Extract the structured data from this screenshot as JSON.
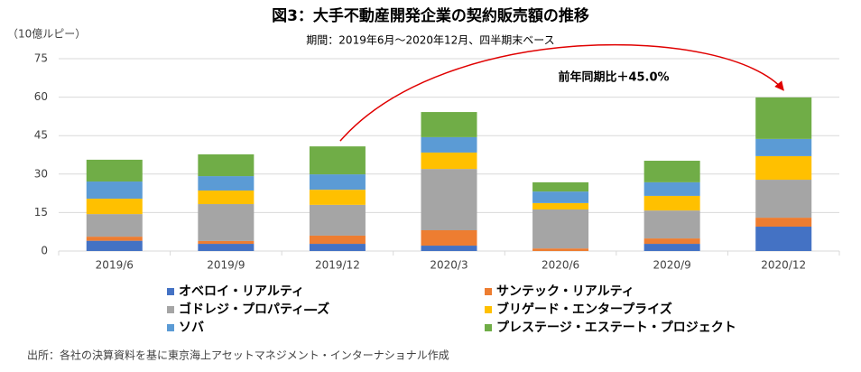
{
  "chart_data": {
    "type": "stacked_bar",
    "title": "図3：大手不動産開発企業の契約販売額の推移",
    "subtitle": "期間：2019年6月〜2020年12月、四半期末ベース",
    "y_axis_label": "（10億ルピー）",
    "annotation": "前年同期比＋45.0%",
    "source": "出所：各社の決算資料を基に東京海上アセットマネジメント・インターナショナル作成",
    "categories": [
      "2019/6",
      "2019/9",
      "2019/12",
      "2020/3",
      "2020/6",
      "2020/9",
      "2020/12"
    ],
    "series": [
      {
        "name": "オベロイ・リアルティ",
        "color": "#4472c4",
        "values": [
          4,
          2.8,
          2.8,
          2.1,
          0,
          2.8,
          9.5
        ]
      },
      {
        "name": "サンテック・リアルティ",
        "color": "#ed7d31",
        "values": [
          1.6,
          1.1,
          3.2,
          6,
          1,
          2.1,
          3.5
        ]
      },
      {
        "name": "ゴドレジ・プロパティ―ズ",
        "color": "#a5a5a5",
        "values": [
          8.8,
          14.4,
          12,
          23.9,
          15.2,
          10.9,
          14.8
        ]
      },
      {
        "name": "ブリゲード・エンタープライズ",
        "color": "#ffc000",
        "values": [
          6,
          5.3,
          5.9,
          6.4,
          2.5,
          5.7,
          9.2
        ]
      },
      {
        "name": "ソバ",
        "color": "#5b9bd5",
        "values": [
          6.7,
          5.6,
          6,
          6,
          4.5,
          5.3,
          6.7
        ]
      },
      {
        "name": "プレステージ・エステート・プロジェクト",
        "color": "#70ad47",
        "values": [
          8.5,
          8.5,
          10.9,
          9.8,
          3.6,
          8.4,
          16.2
        ]
      }
    ],
    "ylim": [
      0,
      75
    ],
    "yticks": [
      0,
      15,
      30,
      45,
      60,
      75
    ],
    "grid": true
  }
}
